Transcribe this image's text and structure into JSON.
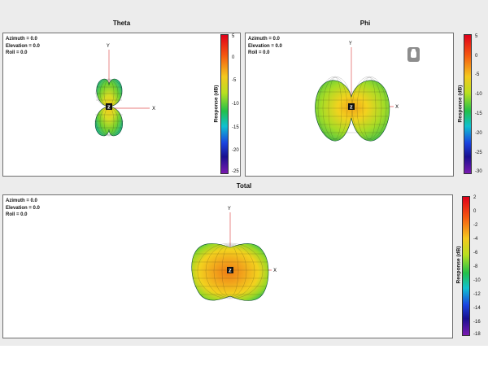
{
  "panels": {
    "theta": {
      "title": "Theta",
      "orientation": {
        "azimuth": "Azimuth = 0.0",
        "elevation": "Elevation = 0.0",
        "roll": "Roll = 0.0"
      },
      "axes": {
        "y": "Y",
        "x": "X",
        "z": "Z"
      },
      "colorbar": {
        "label": "Response (dB)",
        "ticks": [
          "5",
          "0",
          "-5",
          "-10",
          "-15",
          "-20",
          "-25"
        ]
      }
    },
    "phi": {
      "title": "Phi",
      "orientation": {
        "azimuth": "Azimuth = 0.0",
        "elevation": "Elevation = 0.0",
        "roll": "Roll = 0.0"
      },
      "axes": {
        "y": "Y",
        "x": "X",
        "z": "Z"
      },
      "colorbar": {
        "label": "Response (dB)",
        "ticks": [
          "5",
          "0",
          "-5",
          "-10",
          "-15",
          "-20",
          "-25",
          "-30"
        ]
      },
      "rotate_button": "rotate-hand-icon"
    },
    "total": {
      "title": "Total",
      "orientation": {
        "azimuth": "Azimuth = 0.0",
        "elevation": "Elevation = 0.0",
        "roll": "Roll = 0.0"
      },
      "axes": {
        "y": "Y",
        "x": "X",
        "z": "Z"
      },
      "colorbar": {
        "label": "Response (dB)",
        "ticks": [
          "2",
          "0",
          "-2",
          "-4",
          "-6",
          "-8",
          "-10",
          "-12",
          "-14",
          "-16",
          "-18"
        ]
      }
    }
  },
  "colors": {
    "hot": "#ef7d14",
    "warm": "#f2d21e",
    "mid": "#8fd628",
    "cool": "#22c07a",
    "deep": "#10a0c8",
    "mesh": "#1d1d1d",
    "axis": "#e05555"
  }
}
